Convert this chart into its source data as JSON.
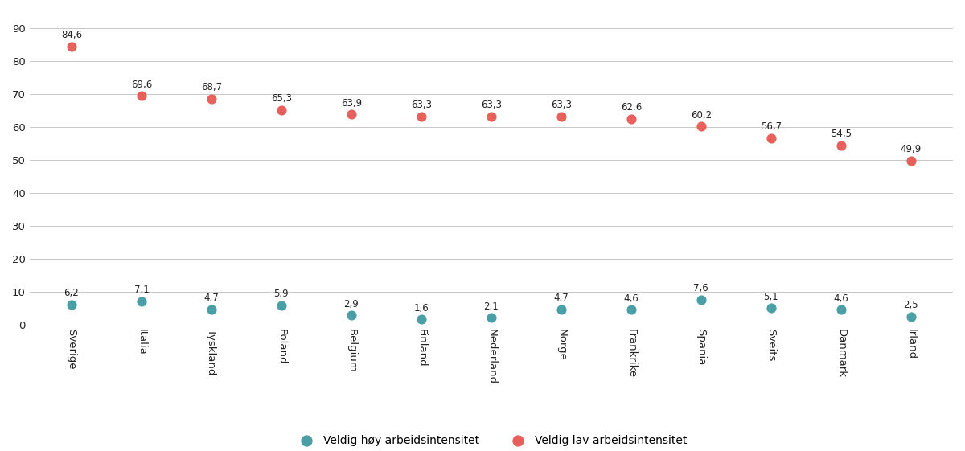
{
  "categories": [
    "Sverige",
    "Italia",
    "Tyskland",
    "Poland",
    "Belgium",
    "Finland",
    "Nederland",
    "Norge",
    "Frankrike",
    "Spania",
    "Sveits",
    "Danmark",
    "Irland"
  ],
  "high_intensity": [
    6.2,
    7.1,
    4.7,
    5.9,
    2.9,
    1.6,
    2.1,
    4.7,
    4.6,
    7.6,
    5.1,
    4.6,
    2.5
  ],
  "low_intensity": [
    84.6,
    69.6,
    68.7,
    65.3,
    63.9,
    63.3,
    63.3,
    63.3,
    62.6,
    60.2,
    56.7,
    54.5,
    49.9
  ],
  "high_labels": [
    "6,2",
    "7,1",
    "4,7",
    "5,9",
    "2,9",
    "1,6",
    "2,1",
    "4,7",
    "4,6",
    "7,6",
    "5,1",
    "4,6",
    "2,5"
  ],
  "low_labels": [
    "84,6",
    "69,6",
    "68,7",
    "65,3",
    "63,9",
    "63,3",
    "63,3",
    "63,3",
    "62,6",
    "60,2",
    "56,7",
    "54,5",
    "49,9"
  ],
  "high_color": "#4a9fa6",
  "low_color": "#e8605b",
  "legend_high": "Veldig høy arbeidsintensitet",
  "legend_low": "Veldig lav arbeidsintensitet",
  "ylim": [
    0,
    95
  ],
  "yticks": [
    0,
    10,
    20,
    30,
    40,
    50,
    60,
    70,
    80,
    90
  ],
  "background_color": "#ffffff",
  "grid_color": "#c8c8c8",
  "marker_size": 60,
  "label_fontsize": 8.5,
  "tick_fontsize": 9.5,
  "legend_fontsize": 10
}
